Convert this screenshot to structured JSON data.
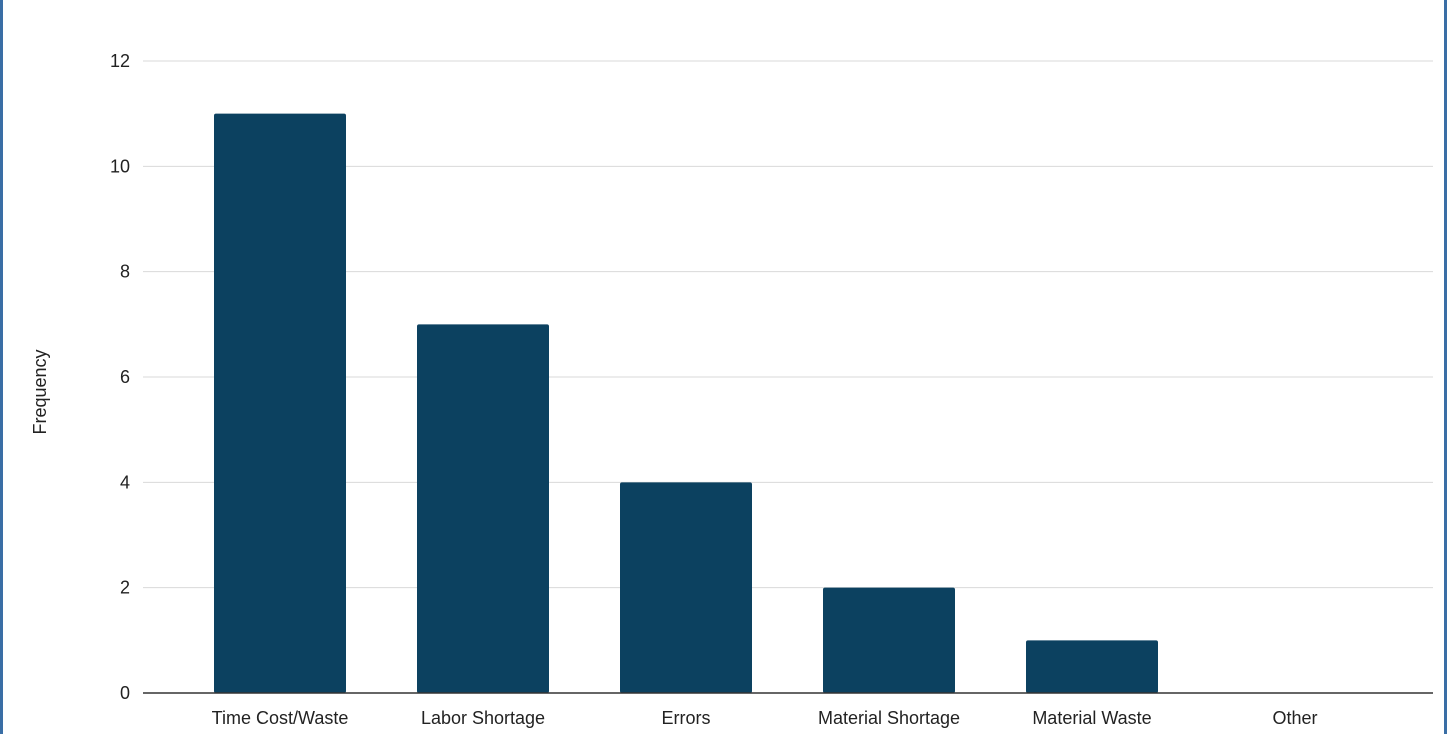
{
  "chart_data": {
    "type": "bar",
    "title": "",
    "xlabel": "",
    "ylabel": "Frequency",
    "categories": [
      "Time Cost/Waste",
      "Labor Shortage",
      "Errors",
      "Material Shortage",
      "Material Waste",
      "Other"
    ],
    "values": [
      11,
      7,
      4,
      2,
      1,
      0
    ],
    "ylim": [
      0,
      12
    ],
    "yticks": [
      "0",
      "2",
      "4",
      "6",
      "8",
      "10",
      "12"
    ],
    "grid": true,
    "legend": "none",
    "bar_color": "#0c4160",
    "frame_color": "#3a6ea5"
  }
}
